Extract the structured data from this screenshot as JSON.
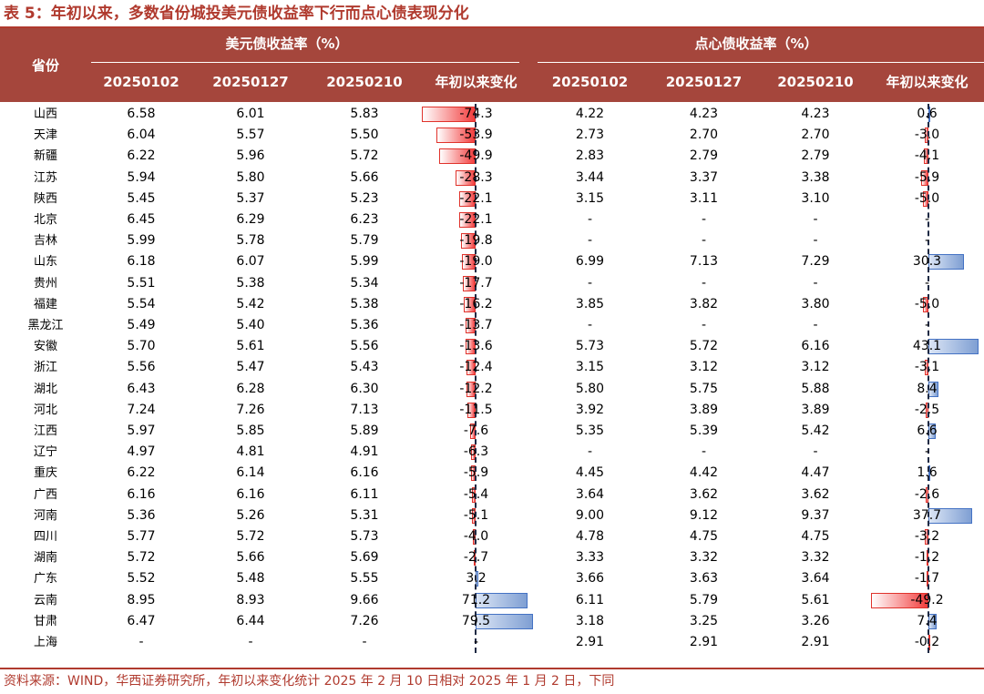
{
  "title": "表 5：年初以来，多数省份城投美元债收益率下行而点心债表现分化",
  "source": "资料来源：WIND，华西证券研究所，年初以来变化统计 2025 年 2 月 10 日相对 2025 年 1 月 2 日，下同",
  "header": {
    "province": "省份",
    "usd_group": "美元债收益率（%）",
    "dimsum_group": "点心债收益率（%）",
    "cols": [
      "20250102",
      "20250127",
      "20250210",
      "年初以来变化",
      "20250102",
      "20250127",
      "20250210",
      "年初以来变化"
    ]
  },
  "colors": {
    "header_bg": "#a5463c",
    "title": "#b03a2e",
    "neg_bar": "#f23c3c",
    "pos_bar": "#7f9fd3"
  },
  "rows": [
    {
      "p": "山西",
      "u1": "6.58",
      "u2": "6.01",
      "u3": "5.83",
      "uc": "-74.3",
      "d1": "4.22",
      "d2": "4.23",
      "d3": "4.23",
      "dc": "0.6"
    },
    {
      "p": "天津",
      "u1": "6.04",
      "u2": "5.57",
      "u3": "5.50",
      "uc": "-53.9",
      "d1": "2.73",
      "d2": "2.70",
      "d3": "2.70",
      "dc": "-3.0"
    },
    {
      "p": "新疆",
      "u1": "6.22",
      "u2": "5.96",
      "u3": "5.72",
      "uc": "-49.9",
      "d1": "2.83",
      "d2": "2.79",
      "d3": "2.79",
      "dc": "-4.1"
    },
    {
      "p": "江苏",
      "u1": "5.94",
      "u2": "5.80",
      "u3": "5.66",
      "uc": "-28.3",
      "d1": "3.44",
      "d2": "3.37",
      "d3": "3.38",
      "dc": "-5.9"
    },
    {
      "p": "陕西",
      "u1": "5.45",
      "u2": "5.37",
      "u3": "5.23",
      "uc": "-22.1",
      "d1": "3.15",
      "d2": "3.11",
      "d3": "3.10",
      "dc": "-5.0"
    },
    {
      "p": "北京",
      "u1": "6.45",
      "u2": "6.29",
      "u3": "6.23",
      "uc": "-22.1",
      "d1": "-",
      "d2": "-",
      "d3": "-",
      "dc": "-"
    },
    {
      "p": "吉林",
      "u1": "5.99",
      "u2": "5.78",
      "u3": "5.79",
      "uc": "-19.8",
      "d1": "-",
      "d2": "-",
      "d3": "-",
      "dc": "-"
    },
    {
      "p": "山东",
      "u1": "6.18",
      "u2": "6.07",
      "u3": "5.99",
      "uc": "-19.0",
      "d1": "6.99",
      "d2": "7.13",
      "d3": "7.29",
      "dc": "30.3"
    },
    {
      "p": "贵州",
      "u1": "5.51",
      "u2": "5.38",
      "u3": "5.34",
      "uc": "-17.7",
      "d1": "-",
      "d2": "-",
      "d3": "-",
      "dc": "-"
    },
    {
      "p": "福建",
      "u1": "5.54",
      "u2": "5.42",
      "u3": "5.38",
      "uc": "-16.2",
      "d1": "3.85",
      "d2": "3.82",
      "d3": "3.80",
      "dc": "-5.0"
    },
    {
      "p": "黑龙江",
      "u1": "5.49",
      "u2": "5.40",
      "u3": "5.36",
      "uc": "-13.7",
      "d1": "-",
      "d2": "-",
      "d3": "-",
      "dc": "-"
    },
    {
      "p": "安徽",
      "u1": "5.70",
      "u2": "5.61",
      "u3": "5.56",
      "uc": "-13.6",
      "d1": "5.73",
      "d2": "5.72",
      "d3": "6.16",
      "dc": "43.1"
    },
    {
      "p": "浙江",
      "u1": "5.56",
      "u2": "5.47",
      "u3": "5.43",
      "uc": "-12.4",
      "d1": "3.15",
      "d2": "3.12",
      "d3": "3.12",
      "dc": "-3.1"
    },
    {
      "p": "湖北",
      "u1": "6.43",
      "u2": "6.28",
      "u3": "6.30",
      "uc": "-12.2",
      "d1": "5.80",
      "d2": "5.75",
      "d3": "5.88",
      "dc": "8.4"
    },
    {
      "p": "河北",
      "u1": "7.24",
      "u2": "7.26",
      "u3": "7.13",
      "uc": "-11.5",
      "d1": "3.92",
      "d2": "3.89",
      "d3": "3.89",
      "dc": "-2.5"
    },
    {
      "p": "江西",
      "u1": "5.97",
      "u2": "5.85",
      "u3": "5.89",
      "uc": "-7.6",
      "d1": "5.35",
      "d2": "5.39",
      "d3": "5.42",
      "dc": "6.6"
    },
    {
      "p": "辽宁",
      "u1": "4.97",
      "u2": "4.81",
      "u3": "4.91",
      "uc": "-6.3",
      "d1": "-",
      "d2": "-",
      "d3": "-",
      "dc": "-"
    },
    {
      "p": "重庆",
      "u1": "6.22",
      "u2": "6.14",
      "u3": "6.16",
      "uc": "-5.9",
      "d1": "4.45",
      "d2": "4.42",
      "d3": "4.47",
      "dc": "1.6"
    },
    {
      "p": "广西",
      "u1": "6.16",
      "u2": "6.16",
      "u3": "6.11",
      "uc": "-5.4",
      "d1": "3.64",
      "d2": "3.62",
      "d3": "3.62",
      "dc": "-2.6"
    },
    {
      "p": "河南",
      "u1": "5.36",
      "u2": "5.26",
      "u3": "5.31",
      "uc": "-5.1",
      "d1": "9.00",
      "d2": "9.12",
      "d3": "9.37",
      "dc": "37.7"
    },
    {
      "p": "四川",
      "u1": "5.77",
      "u2": "5.72",
      "u3": "5.73",
      "uc": "-4.0",
      "d1": "4.78",
      "d2": "4.75",
      "d3": "4.75",
      "dc": "-3.2"
    },
    {
      "p": "湖南",
      "u1": "5.72",
      "u2": "5.66",
      "u3": "5.69",
      "uc": "-2.7",
      "d1": "3.33",
      "d2": "3.32",
      "d3": "3.32",
      "dc": "-1.2"
    },
    {
      "p": "广东",
      "u1": "5.52",
      "u2": "5.48",
      "u3": "5.55",
      "uc": "3.2",
      "d1": "3.66",
      "d2": "3.63",
      "d3": "3.64",
      "dc": "-1.7"
    },
    {
      "p": "云南",
      "u1": "8.95",
      "u2": "8.93",
      "u3": "9.66",
      "uc": "71.2",
      "d1": "6.11",
      "d2": "5.79",
      "d3": "5.61",
      "dc": "-49.2"
    },
    {
      "p": "甘肃",
      "u1": "6.47",
      "u2": "6.44",
      "u3": "7.26",
      "uc": "79.5",
      "d1": "3.18",
      "d2": "3.25",
      "d3": "3.26",
      "dc": "7.4"
    },
    {
      "p": "上海",
      "u1": "-",
      "u2": "-",
      "u3": "-",
      "uc": "-",
      "d1": "2.91",
      "d2": "2.91",
      "d3": "2.91",
      "dc": "-0.2"
    }
  ]
}
